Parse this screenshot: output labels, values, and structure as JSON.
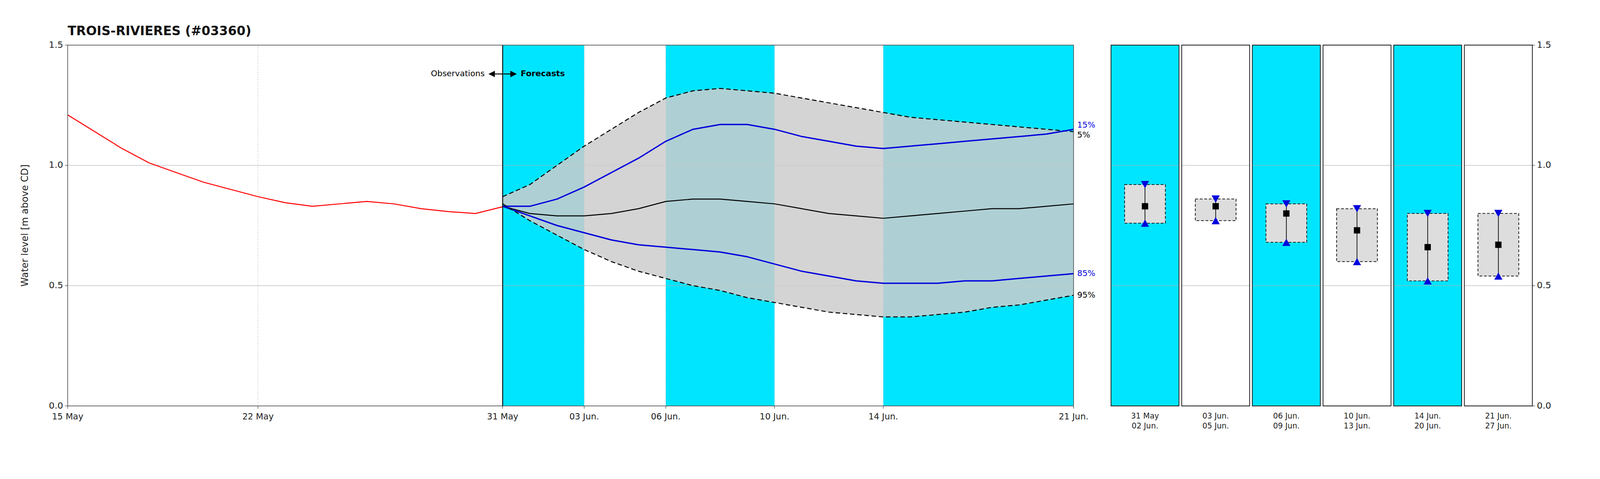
{
  "chart_data": [
    {
      "type": "line",
      "title": "TROIS-RIVIERES (#03360)",
      "ylabel": "Water level [m above CD]",
      "xlim": [
        0,
        37
      ],
      "ylim": [
        0.0,
        1.5
      ],
      "yticks": [
        {
          "value": 0.0,
          "label": "0.0"
        },
        0.5,
        {
          "value": 1.0,
          "label": "1.0"
        },
        1.5
      ],
      "xticks": [
        {
          "value": 0,
          "label": "15 May"
        },
        {
          "value": 7,
          "label": "22 May"
        },
        {
          "value": 16,
          "label": "31 May"
        },
        {
          "value": 19,
          "label": "03 Jun."
        },
        {
          "value": 22,
          "label": "06 Jun."
        },
        {
          "value": 26,
          "label": "10 Jun."
        },
        {
          "value": 30,
          "label": "14 Jun."
        },
        {
          "value": 37,
          "label": "21 Jun."
        }
      ],
      "grid": true,
      "forecast_start": 16,
      "annotations": [
        "Observations",
        "Forecasts"
      ],
      "bands": [
        {
          "from": 16,
          "to": 19,
          "color": "#00E5FF"
        },
        {
          "from": 22,
          "to": 26,
          "color": "#00E5FF"
        },
        {
          "from": 30,
          "to": 37,
          "color": "#00E5FF"
        }
      ],
      "series": [
        {
          "color": "#FF0000",
          "line_style": "solid",
          "x": [
            0,
            1,
            2,
            3,
            4,
            5,
            6,
            7,
            8,
            9,
            10,
            11,
            12,
            13,
            14,
            15,
            16
          ],
          "values": [
            1.21,
            1.14,
            1.07,
            1.01,
            0.97,
            0.93,
            0.9,
            0.87,
            0.845,
            0.83,
            0.84,
            0.85,
            0.84,
            0.82,
            0.808,
            0.8,
            0.828
          ]
        },
        {
          "name": "5%",
          "color": "#000000",
          "line_style": "dashed",
          "x": [
            16,
            17,
            18,
            19,
            20,
            21,
            22,
            23,
            24,
            25,
            26,
            27,
            28,
            29,
            30,
            31,
            32,
            33,
            34,
            35,
            36,
            37
          ],
          "values": [
            0.87,
            0.92,
            1.0,
            1.08,
            1.15,
            1.22,
            1.28,
            1.31,
            1.32,
            1.31,
            1.3,
            1.28,
            1.26,
            1.24,
            1.22,
            1.2,
            1.19,
            1.18,
            1.17,
            1.16,
            1.15,
            1.14
          ]
        },
        {
          "name": "15%",
          "color": "#0000DD",
          "line_style": "solid",
          "x": [
            16,
            17,
            18,
            19,
            20,
            21,
            22,
            23,
            24,
            25,
            26,
            27,
            28,
            29,
            30,
            31,
            32,
            33,
            34,
            35,
            36,
            37
          ],
          "values": [
            0.83,
            0.83,
            0.86,
            0.91,
            0.97,
            1.03,
            1.1,
            1.15,
            1.17,
            1.17,
            1.15,
            1.12,
            1.1,
            1.08,
            1.07,
            1.08,
            1.09,
            1.1,
            1.11,
            1.12,
            1.13,
            1.15
          ]
        },
        {
          "color": "#000000",
          "line_style": "solid",
          "x": [
            16,
            17,
            18,
            19,
            20,
            21,
            22,
            23,
            24,
            25,
            26,
            27,
            28,
            29,
            30,
            31,
            32,
            33,
            34,
            35,
            36,
            37
          ],
          "values": [
            0.83,
            0.8,
            0.79,
            0.79,
            0.8,
            0.82,
            0.85,
            0.86,
            0.86,
            0.85,
            0.84,
            0.82,
            0.8,
            0.79,
            0.78,
            0.79,
            0.8,
            0.81,
            0.82,
            0.82,
            0.83,
            0.84
          ]
        },
        {
          "name": "85%",
          "color": "#0000DD",
          "line_style": "solid",
          "x": [
            16,
            17,
            18,
            19,
            20,
            21,
            22,
            23,
            24,
            25,
            26,
            27,
            28,
            29,
            30,
            31,
            32,
            33,
            34,
            35,
            36,
            37
          ],
          "values": [
            0.83,
            0.79,
            0.75,
            0.72,
            0.69,
            0.67,
            0.66,
            0.65,
            0.64,
            0.62,
            0.59,
            0.56,
            0.54,
            0.52,
            0.51,
            0.51,
            0.51,
            0.52,
            0.52,
            0.53,
            0.54,
            0.55
          ]
        },
        {
          "name": "95%",
          "color": "#000000",
          "line_style": "dashed",
          "x": [
            16,
            17,
            18,
            19,
            20,
            21,
            22,
            23,
            24,
            25,
            26,
            27,
            28,
            29,
            30,
            31,
            32,
            33,
            34,
            35,
            36,
            37
          ],
          "values": [
            0.84,
            0.77,
            0.71,
            0.65,
            0.6,
            0.56,
            0.53,
            0.5,
            0.48,
            0.45,
            0.43,
            0.41,
            0.39,
            0.38,
            0.37,
            0.37,
            0.38,
            0.39,
            0.41,
            0.42,
            0.44,
            0.46
          ]
        }
      ]
    },
    {
      "type": "range",
      "categories": [
        "31 May\n02 Jun.",
        "03 Jun.\n05 Jun.",
        "06 Jun.\n09 Jun.",
        "10 Jun.\n13 Jun.",
        "14 Jun.\n20 Jun.",
        "21 Jun.\n27 Jun."
      ],
      "ylim": [
        0.0,
        1.5
      ],
      "yticks": [
        {
          "value": 0.0,
          "label": "0.0"
        },
        0.5,
        {
          "value": 1.0,
          "label": "1.0"
        },
        1.5
      ],
      "grid": true,
      "color": "#00E5FF",
      "highlighted": [
        true,
        false,
        true,
        false,
        true,
        false
      ],
      "box_ranges": [
        [
          0.76,
          0.92
        ],
        [
          0.77,
          0.86
        ],
        [
          0.68,
          0.84
        ],
        [
          0.6,
          0.82
        ],
        [
          0.52,
          0.8
        ],
        [
          0.54,
          0.8
        ]
      ],
      "series": [
        {
          "color": "#0000DD",
          "marker": "triangle-down",
          "values": [
            0.92,
            0.86,
            0.84,
            0.82,
            0.8,
            0.8
          ]
        },
        {
          "color": "#000000",
          "marker": "square",
          "values": [
            0.83,
            0.83,
            0.8,
            0.73,
            0.66,
            0.67
          ]
        },
        {
          "color": "#0000DD",
          "marker": "triangle-up",
          "values": [
            0.76,
            0.77,
            0.68,
            0.6,
            0.52,
            0.54
          ]
        }
      ]
    }
  ]
}
